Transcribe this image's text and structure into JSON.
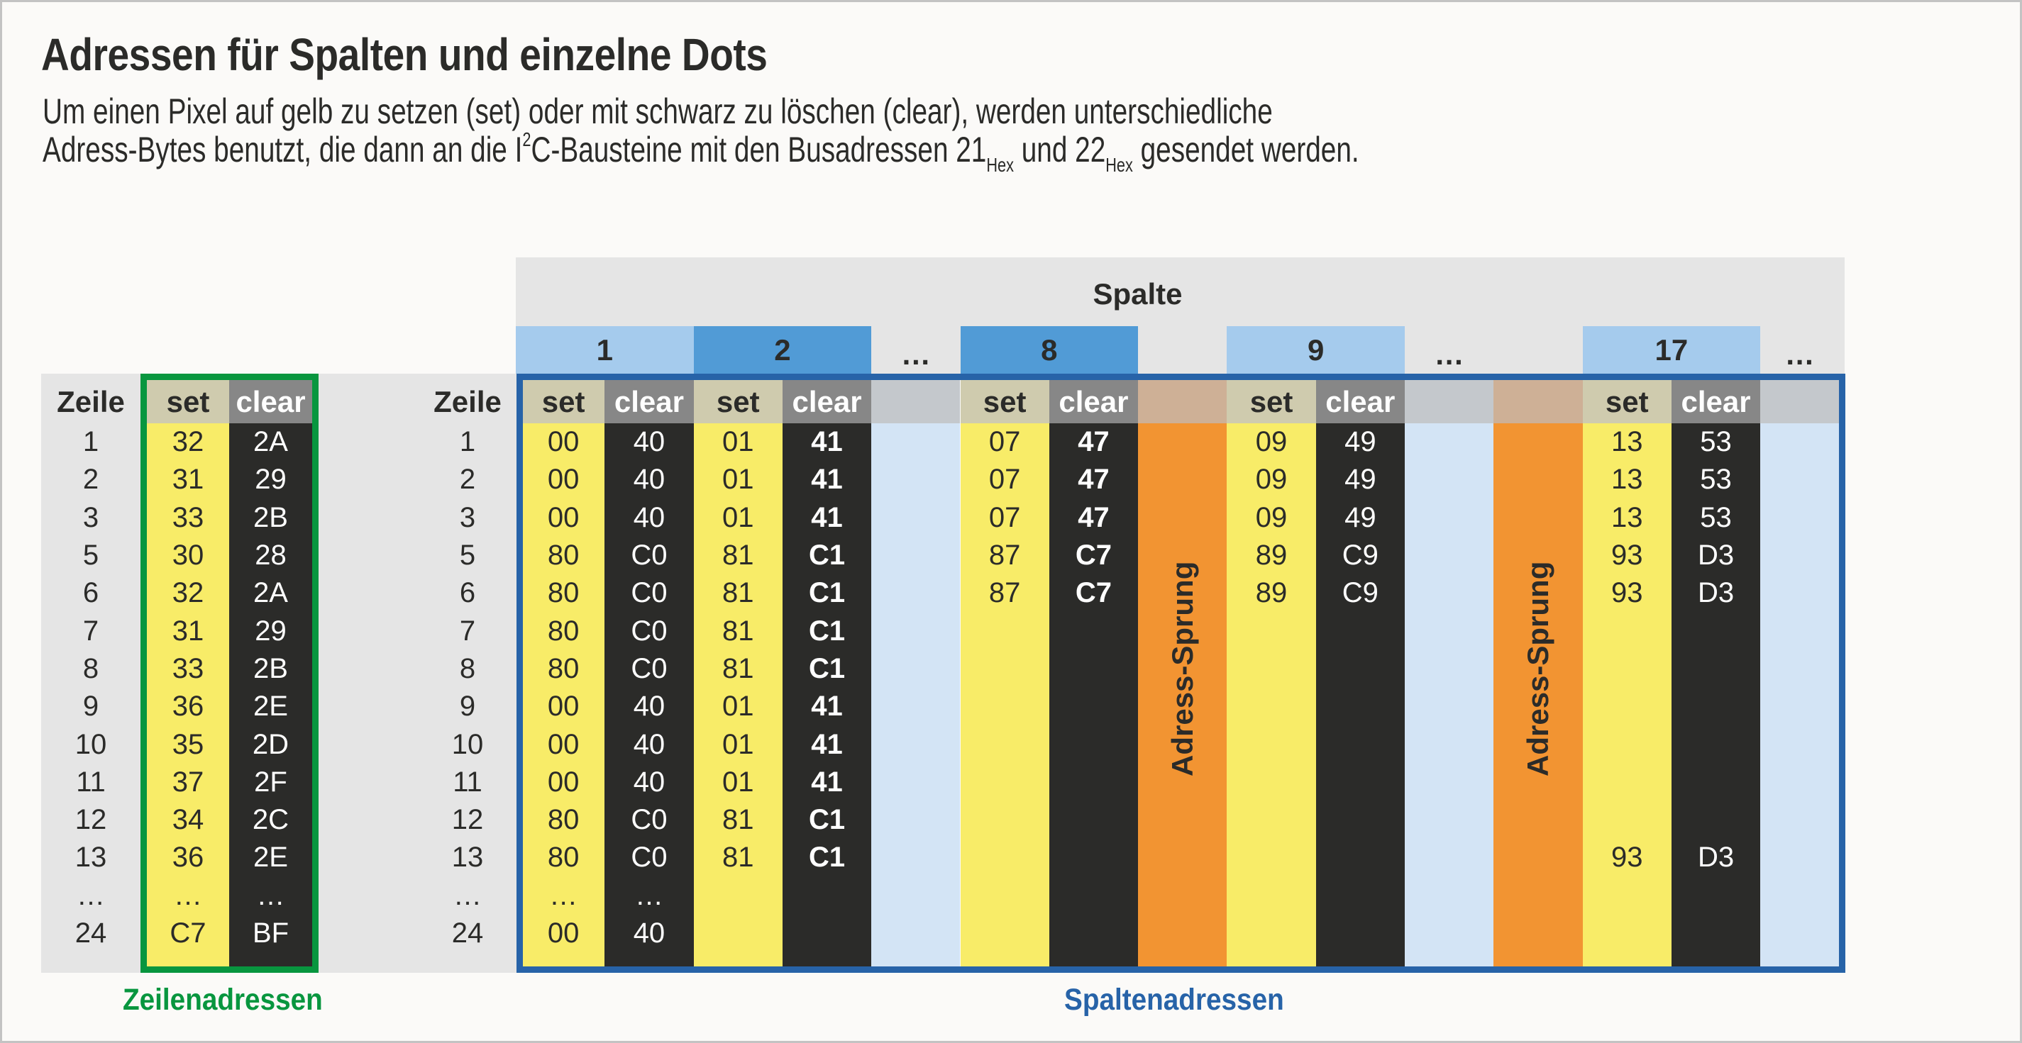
{
  "title": "Adressen für Spalten und einzelne Dots",
  "subtitle": {
    "line1": "Um einen Pixel auf gelb zu setzen (set) oder mit schwarz zu löschen (clear), werden unterschiedliche",
    "line2_a": "Adress-Bytes benutzt, die dann an die I",
    "line2_sup": "2",
    "line2_b": "C-Bausteine mit den Busadressen 21",
    "hex1": "Hex",
    "line2_c": " und 22",
    "hex2": "Hex",
    "line2_d": " gesendet werden."
  },
  "colors": {
    "gray_bg": "#e5e5e5",
    "yellow": "#f8ec68",
    "black": "#2b2b29",
    "set_header": "#cfcbae",
    "clear_header": "#878787",
    "gap_header": "#c4c8cc",
    "gap_body": "#d3e4f5",
    "orange": "#f29432",
    "orange_header": "#ceb096",
    "light_blue": "#a5cbed",
    "mid_blue": "#519bd6",
    "blue_border": "#2763a8",
    "green": "#08963f"
  },
  "row_table": {
    "zeile_header": "Zeile",
    "set_header": "set",
    "clear_header": "clear",
    "zeilen": [
      "1",
      "2",
      "3",
      "5",
      "6",
      "7",
      "8",
      "9",
      "10",
      "11",
      "12",
      "13",
      "…",
      "24"
    ],
    "set": [
      "32",
      "31",
      "33",
      "30",
      "32",
      "31",
      "33",
      "36",
      "35",
      "37",
      "34",
      "36",
      "…",
      "C7"
    ],
    "clear": [
      "2A",
      "29",
      "2B",
      "28",
      "2A",
      "29",
      "2B",
      "2E",
      "2D",
      "2F",
      "2C",
      "2E",
      "…",
      "BF"
    ],
    "label": "Zeilenadressen"
  },
  "column_table": {
    "spalte_header": "Spalte",
    "zeile_header": "Zeile",
    "zeilen": [
      "1",
      "2",
      "3",
      "5",
      "6",
      "7",
      "8",
      "9",
      "10",
      "11",
      "12",
      "13",
      "…",
      "24"
    ],
    "label": "Spaltenadressen",
    "jump_label": "Adress-Sprung",
    "columns": [
      {
        "kind": "col",
        "label": "1",
        "shade": "light",
        "bold_clear": false,
        "set_header": "set",
        "clear_header": "clear",
        "set": [
          "00",
          "00",
          "00",
          "80",
          "80",
          "80",
          "80",
          "00",
          "00",
          "00",
          "80",
          "80",
          "…",
          "00"
        ],
        "clear": [
          "40",
          "40",
          "40",
          "C0",
          "C0",
          "C0",
          "C0",
          "40",
          "40",
          "40",
          "C0",
          "C0",
          "…",
          "40"
        ]
      },
      {
        "kind": "col",
        "label": "2",
        "shade": "mid",
        "bold_clear": true,
        "set_header": "set",
        "clear_header": "clear",
        "set": [
          "01",
          "01",
          "01",
          "81",
          "81",
          "81",
          "81",
          "01",
          "01",
          "01",
          "81",
          "81",
          "",
          ""
        ],
        "clear": [
          "41",
          "41",
          "41",
          "C1",
          "C1",
          "C1",
          "C1",
          "41",
          "41",
          "41",
          "C1",
          "C1",
          "",
          ""
        ]
      },
      {
        "kind": "gap",
        "label": "…"
      },
      {
        "kind": "col",
        "label": "8",
        "shade": "mid",
        "bold_clear": true,
        "set_header": "set",
        "clear_header": "clear",
        "set": [
          "07",
          "07",
          "07",
          "87",
          "87",
          "",
          "",
          "",
          "",
          "",
          "",
          "",
          "",
          ""
        ],
        "clear": [
          "47",
          "47",
          "47",
          "C7",
          "C7",
          "",
          "",
          "",
          "",
          "",
          "",
          "",
          "",
          ""
        ]
      },
      {
        "kind": "jump"
      },
      {
        "kind": "col",
        "label": "9",
        "shade": "light",
        "bold_clear": false,
        "set_header": "set",
        "clear_header": "clear",
        "set": [
          "09",
          "09",
          "09",
          "89",
          "89",
          "",
          "",
          "",
          "",
          "",
          "",
          "",
          "",
          ""
        ],
        "clear": [
          "49",
          "49",
          "49",
          "C9",
          "C9",
          "",
          "",
          "",
          "",
          "",
          "",
          "",
          "",
          ""
        ]
      },
      {
        "kind": "gap",
        "label": "…"
      },
      {
        "kind": "jump"
      },
      {
        "kind": "col",
        "label": "17",
        "shade": "light",
        "bold_clear": false,
        "set_header": "set",
        "clear_header": "clear",
        "set": [
          "13",
          "13",
          "13",
          "93",
          "93",
          "",
          "",
          "",
          "",
          "",
          "",
          "93",
          "",
          ""
        ],
        "clear": [
          "53",
          "53",
          "53",
          "D3",
          "D3",
          "",
          "",
          "",
          "",
          "",
          "",
          "D3",
          "",
          ""
        ]
      },
      {
        "kind": "gap_end",
        "label": "…"
      }
    ]
  }
}
